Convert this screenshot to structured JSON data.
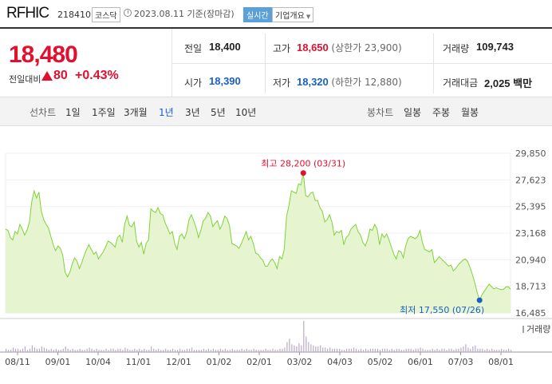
{
  "stock": {
    "name": "RFHIC",
    "code": "218410",
    "market": "코스닥",
    "date": "2023.08.11 기준(장마감)",
    "realtime": "실시간",
    "overview": "기업개요"
  },
  "quote": {
    "price": "18,480",
    "change_label": "전일대비",
    "change": "80",
    "change_pct": "+0.43%"
  },
  "stats": {
    "prev_label": "전일",
    "prev": "18,400",
    "high_label": "고가",
    "high": "18,650",
    "upper_limit": "(상한가 23,900)",
    "volume_label": "거래량",
    "volume": "109,743",
    "open_label": "시가",
    "open": "18,390",
    "low_label": "저가",
    "low": "18,320",
    "lower_limit": "(하한가 12,880)",
    "amount_label": "거래대금",
    "amount": "2,025 백만"
  },
  "tabs": {
    "line_label": "선차트",
    "line": [
      "1일",
      "1주일",
      "3개월",
      "1년",
      "3년",
      "5년",
      "10년"
    ],
    "active": "1년",
    "candle_label": "봉차트",
    "candle": [
      "일봉",
      "주봉",
      "월봉"
    ]
  },
  "colors": {
    "up": "#e1102f",
    "down": "#1a5fc4",
    "line": "#7fd23a",
    "fill": "#e6f5cf"
  },
  "chart_data": {
    "type": "area",
    "y_ticks": [
      "29,850",
      "27,623",
      "25,395",
      "23,168",
      "20,940",
      "18,713",
      "16,485"
    ],
    "ylim": [
      16485,
      29850
    ],
    "x_ticks": [
      "08/11",
      "09/01",
      "10/04",
      "11/01",
      "12/01",
      "01/02",
      "02/01",
      "03/02",
      "04/03",
      "05/02",
      "06/01",
      "07/03",
      "08/01"
    ],
    "max_label": "최고 28,200 (03/31)",
    "min_label": "최저 17,550 (07/26)",
    "volume_label": "거래량",
    "price_series": [
      23500,
      23400,
      22800,
      22600,
      23300,
      23100,
      23900,
      23500,
      23000,
      23400,
      24100,
      25800,
      26700,
      26100,
      26600,
      25000,
      24300,
      23900,
      23600,
      22900,
      22200,
      21700,
      22100,
      21900,
      21300,
      19900,
      19500,
      19900,
      20600,
      21100,
      20800,
      20200,
      20700,
      21300,
      21800,
      22200,
      21800,
      21400,
      21600,
      21000,
      21300,
      21600,
      22000,
      22500,
      22400,
      22200,
      22000,
      22800,
      23000,
      22400,
      23900,
      24600,
      23800,
      23700,
      24100,
      22500,
      22000,
      22400,
      21400,
      22300,
      22600,
      25200,
      25000,
      24900,
      25300,
      24800,
      24700,
      24000,
      23600,
      23100,
      23300,
      22300,
      21800,
      22900,
      23100,
      22700,
      23200,
      24300,
      24700,
      24200,
      23600,
      22800,
      23400,
      24200,
      24400,
      24900,
      24600,
      23700,
      24000,
      24200,
      23500,
      23900,
      24600,
      24400,
      23800,
      22300,
      22200,
      22100,
      21900,
      22300,
      22800,
      23300,
      22600,
      22900,
      22300,
      21500,
      21400,
      21100,
      20900,
      20400,
      20400,
      20800,
      21000,
      20700,
      20200,
      21200,
      21000,
      21800,
      24600,
      25500,
      26700,
      26600,
      26500,
      27300,
      27200,
      28200,
      26300,
      26200,
      26500,
      26600,
      25900,
      25900,
      25300,
      25000,
      24100,
      24300,
      24700,
      24100,
      23000,
      23300,
      23200,
      23400,
      22200,
      22800,
      23000,
      23500,
      23700,
      23900,
      23300,
      23000,
      22400,
      22100,
      22600,
      23500,
      23400,
      23900,
      23500,
      22200,
      23100,
      22800,
      23100,
      22600,
      22000,
      21400,
      21000,
      21700,
      21600,
      21100,
      22100,
      22700,
      22900,
      22800,
      22700,
      22900,
      23400,
      22400,
      21800,
      21700,
      21600,
      21800,
      20700,
      20900,
      21200,
      21000,
      20800,
      20600,
      20400,
      20500,
      20000,
      20200,
      20500,
      20700,
      20900,
      21000,
      20800,
      20300,
      19700,
      19000,
      18200,
      17550,
      18000,
      18300,
      18600,
      18900,
      18700,
      18500,
      18600,
      18500,
      18450,
      18450,
      18650,
      18700,
      18480
    ],
    "volume_series": [
      3,
      2,
      2,
      4,
      3,
      3,
      2,
      3,
      5,
      2,
      3,
      6,
      4,
      3,
      3,
      5,
      4,
      3,
      2,
      3,
      2,
      3,
      2,
      2,
      3,
      5,
      3,
      2,
      3,
      2,
      2,
      3,
      2,
      2,
      3,
      4,
      3,
      2,
      3,
      2,
      2,
      2,
      3,
      2,
      3,
      3,
      2,
      3,
      3,
      2,
      4,
      3,
      2,
      2,
      3,
      2,
      3,
      2,
      3,
      2,
      2,
      5,
      3,
      2,
      3,
      2,
      2,
      3,
      2,
      2,
      3,
      2,
      2,
      3,
      2,
      2,
      3,
      3,
      4,
      2,
      2,
      2,
      2,
      3,
      2,
      3,
      2,
      3,
      2,
      2,
      3,
      2,
      3,
      2,
      2,
      3,
      2,
      2,
      2,
      3,
      2,
      3,
      2,
      2,
      3,
      2,
      2,
      2,
      2,
      3,
      2,
      2,
      3,
      2,
      2,
      3,
      3,
      4,
      9,
      12,
      7,
      6,
      5,
      8,
      6,
      28,
      14,
      9,
      7,
      6,
      5,
      5,
      6,
      4,
      4,
      3,
      4,
      3,
      3,
      3,
      3,
      2,
      2,
      3,
      3,
      3,
      4,
      3,
      2,
      3,
      2,
      3,
      2,
      3,
      3,
      3,
      3,
      2,
      3,
      3,
      3,
      2,
      3,
      2,
      3,
      3,
      2,
      2,
      3,
      3,
      3,
      2,
      3,
      3,
      4,
      3,
      2,
      2,
      2,
      3,
      2,
      3,
      2,
      3,
      3,
      2,
      3,
      3,
      2,
      3,
      3,
      4,
      5,
      7,
      4,
      3,
      5,
      6,
      3,
      3,
      3,
      2,
      3,
      2,
      3,
      2,
      2,
      2,
      3,
      2,
      2,
      3,
      2
    ]
  }
}
